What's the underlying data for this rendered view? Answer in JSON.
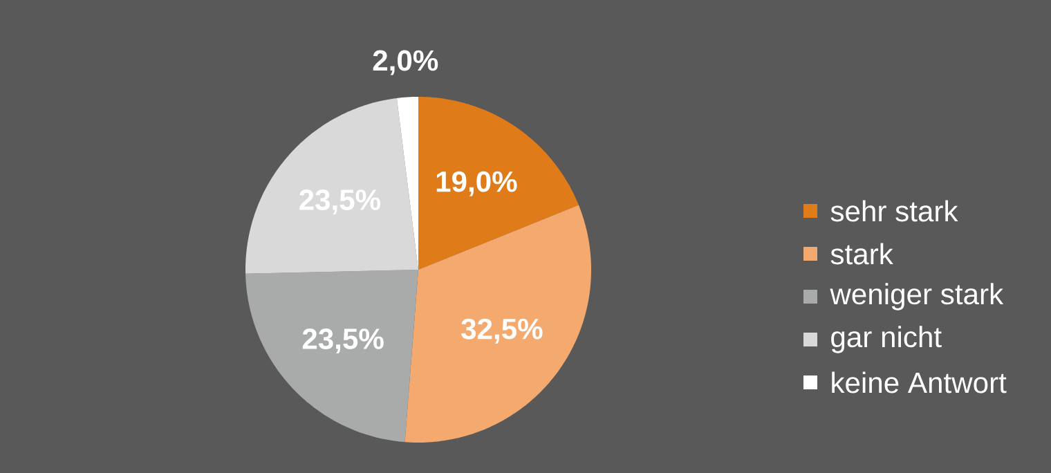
{
  "chart_data": {
    "type": "pie",
    "categories": [
      "sehr stark",
      "stark",
      "weniger stark",
      "gar nicht",
      "keine Antwort"
    ],
    "values": [
      19.0,
      32.5,
      23.5,
      23.5,
      2.0
    ],
    "colors": [
      "#e07b1a",
      "#f4aa6e",
      "#a9abab",
      "#d9d9d9",
      "#ffffff"
    ],
    "value_labels": [
      "19,0%",
      "32,5%",
      "23,5%",
      "23,5%",
      "2,0%"
    ],
    "legend": "right"
  }
}
